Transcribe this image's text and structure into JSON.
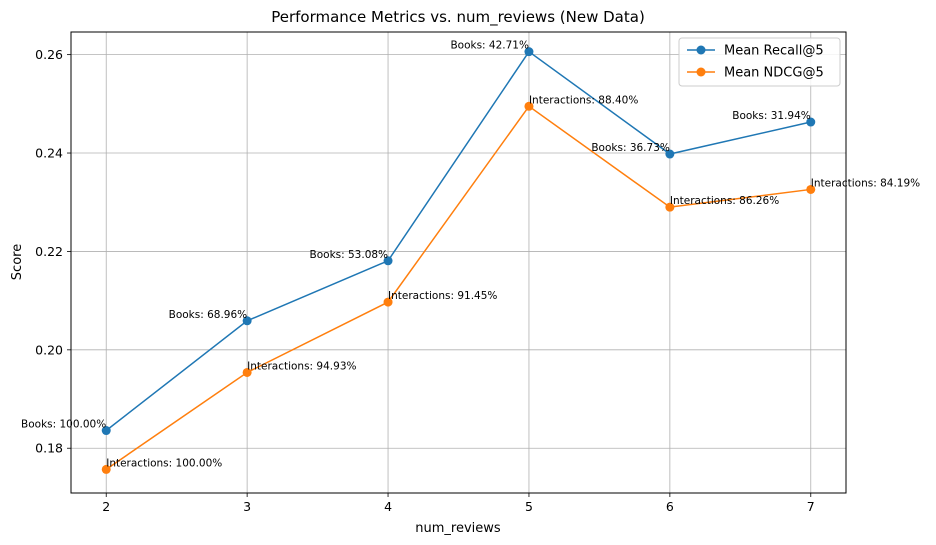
{
  "chart_data": {
    "type": "line",
    "title": "Performance Metrics vs. num_reviews (New Data)",
    "xlabel": "num_reviews",
    "ylabel": "Score",
    "x": [
      2,
      3,
      4,
      5,
      6,
      7
    ],
    "xlim": [
      1.75,
      7.25
    ],
    "ylim": [
      0.1709,
      0.2646
    ],
    "xticks": [
      2,
      3,
      4,
      5,
      6,
      7
    ],
    "yticks": [
      0.18,
      0.2,
      0.22,
      0.24,
      0.26
    ],
    "grid": true,
    "legend_position": "top-right",
    "series": [
      {
        "name": "Mean Recall@5",
        "color": "#1f77b4",
        "values": [
          0.1836,
          0.2059,
          0.2181,
          0.2606,
          0.2398,
          0.2463
        ],
        "annotations": [
          "Books: 100.00%",
          "Books: 68.96%",
          "Books: 53.08%",
          "Books: 42.71%",
          "Books: 36.73%",
          "Books: 31.94%"
        ]
      },
      {
        "name": "Mean NDCG@5",
        "color": "#ff7f0e",
        "values": [
          0.1757,
          0.1954,
          0.2097,
          0.2495,
          0.229,
          0.2326
        ],
        "annotations": [
          "Interactions: 100.00%",
          "Interactions: 94.93%",
          "Interactions: 91.45%",
          "Interactions: 88.40%",
          "Interactions: 86.26%",
          "Interactions: 84.19%"
        ]
      }
    ]
  }
}
